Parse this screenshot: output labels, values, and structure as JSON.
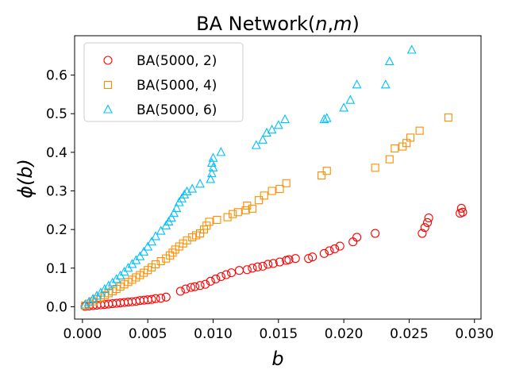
{
  "chart_data": {
    "type": "scatter",
    "title": "BA Network(n,m)",
    "title_parts": {
      "prefix": "BA Network(",
      "n": "n",
      "sep": ",",
      "m": "m",
      "suffix": ")"
    },
    "xlabel": "b",
    "ylabel": "ϕ(b)",
    "xlim": [
      -0.0006,
      0.0305
    ],
    "ylim": [
      -0.032,
      0.702
    ],
    "xticks": [
      0.0,
      0.005,
      0.01,
      0.015,
      0.02,
      0.025,
      0.03
    ],
    "xtick_labels": [
      "0.000",
      "0.005",
      "0.010",
      "0.015",
      "0.020",
      "0.025",
      "0.030"
    ],
    "yticks": [
      0.0,
      0.1,
      0.2,
      0.3,
      0.4,
      0.5,
      0.6
    ],
    "ytick_labels": [
      "0.0",
      "0.1",
      "0.2",
      "0.3",
      "0.4",
      "0.5",
      "0.6"
    ],
    "grid": false,
    "legend_position": "top-left",
    "series": [
      {
        "name": "BA(5000, 2)",
        "marker": "circle",
        "color": "#ff0000",
        "points": [
          [
            0.0002,
            0.001
          ],
          [
            0.0005,
            0.002
          ],
          [
            0.0008,
            0.003
          ],
          [
            0.0011,
            0.004
          ],
          [
            0.0014,
            0.005
          ],
          [
            0.0017,
            0.006
          ],
          [
            0.002,
            0.007
          ],
          [
            0.0023,
            0.008
          ],
          [
            0.0026,
            0.009
          ],
          [
            0.0029,
            0.01
          ],
          [
            0.0032,
            0.011
          ],
          [
            0.0035,
            0.012
          ],
          [
            0.0038,
            0.013
          ],
          [
            0.0041,
            0.014
          ],
          [
            0.0044,
            0.016
          ],
          [
            0.0047,
            0.017
          ],
          [
            0.005,
            0.018
          ],
          [
            0.0053,
            0.019
          ],
          [
            0.0056,
            0.021
          ],
          [
            0.006,
            0.022
          ],
          [
            0.0064,
            0.025
          ],
          [
            0.0075,
            0.04
          ],
          [
            0.0079,
            0.046
          ],
          [
            0.0083,
            0.05
          ],
          [
            0.0086,
            0.052
          ],
          [
            0.009,
            0.055
          ],
          [
            0.0094,
            0.058
          ],
          [
            0.0098,
            0.066
          ],
          [
            0.0102,
            0.072
          ],
          [
            0.0106,
            0.078
          ],
          [
            0.011,
            0.083
          ],
          [
            0.0114,
            0.088
          ],
          [
            0.012,
            0.094
          ],
          [
            0.0126,
            0.096
          ],
          [
            0.013,
            0.1
          ],
          [
            0.0134,
            0.103
          ],
          [
            0.0138,
            0.105
          ],
          [
            0.0142,
            0.11
          ],
          [
            0.0146,
            0.112
          ],
          [
            0.0151,
            0.116
          ],
          [
            0.0156,
            0.12
          ],
          [
            0.0158,
            0.122
          ],
          [
            0.0163,
            0.125
          ],
          [
            0.0173,
            0.125
          ],
          [
            0.0176,
            0.129
          ],
          [
            0.0185,
            0.138
          ],
          [
            0.0189,
            0.145
          ],
          [
            0.0193,
            0.15
          ],
          [
            0.0197,
            0.157
          ],
          [
            0.0207,
            0.168
          ],
          [
            0.021,
            0.18
          ],
          [
            0.0224,
            0.19
          ],
          [
            0.026,
            0.19
          ],
          [
            0.0262,
            0.205
          ],
          [
            0.0264,
            0.218
          ],
          [
            0.0265,
            0.23
          ],
          [
            0.0289,
            0.242
          ],
          [
            0.029,
            0.255
          ],
          [
            0.0291,
            0.245
          ]
        ]
      },
      {
        "name": "BA(5000, 4)",
        "marker": "square",
        "color": "#ff8c00",
        "points": [
          [
            0.0002,
            0.003
          ],
          [
            0.0005,
            0.008
          ],
          [
            0.0008,
            0.014
          ],
          [
            0.0011,
            0.019
          ],
          [
            0.0014,
            0.024
          ],
          [
            0.0017,
            0.03
          ],
          [
            0.002,
            0.035
          ],
          [
            0.0023,
            0.04
          ],
          [
            0.0026,
            0.046
          ],
          [
            0.0029,
            0.052
          ],
          [
            0.0032,
            0.058
          ],
          [
            0.0035,
            0.064
          ],
          [
            0.0038,
            0.07
          ],
          [
            0.0041,
            0.076
          ],
          [
            0.0044,
            0.082
          ],
          [
            0.0047,
            0.088
          ],
          [
            0.005,
            0.095
          ],
          [
            0.0053,
            0.102
          ],
          [
            0.0056,
            0.11
          ],
          [
            0.006,
            0.118
          ],
          [
            0.0064,
            0.125
          ],
          [
            0.0067,
            0.133
          ],
          [
            0.0069,
            0.14
          ],
          [
            0.0071,
            0.148
          ],
          [
            0.0074,
            0.156
          ],
          [
            0.0077,
            0.164
          ],
          [
            0.008,
            0.172
          ],
          [
            0.0084,
            0.18
          ],
          [
            0.0087,
            0.185
          ],
          [
            0.009,
            0.19
          ],
          [
            0.0093,
            0.2
          ],
          [
            0.0095,
            0.21
          ],
          [
            0.0097,
            0.22
          ],
          [
            0.0103,
            0.225
          ],
          [
            0.0111,
            0.232
          ],
          [
            0.0115,
            0.24
          ],
          [
            0.0119,
            0.245
          ],
          [
            0.0125,
            0.25
          ],
          [
            0.0126,
            0.262
          ],
          [
            0.013,
            0.254
          ],
          [
            0.0135,
            0.276
          ],
          [
            0.0139,
            0.288
          ],
          [
            0.0145,
            0.3
          ],
          [
            0.0151,
            0.305
          ],
          [
            0.0156,
            0.32
          ],
          [
            0.0183,
            0.34
          ],
          [
            0.0187,
            0.352
          ],
          [
            0.0224,
            0.36
          ],
          [
            0.0235,
            0.382
          ],
          [
            0.0239,
            0.41
          ],
          [
            0.0245,
            0.415
          ],
          [
            0.0248,
            0.424
          ],
          [
            0.0251,
            0.438
          ],
          [
            0.0258,
            0.456
          ],
          [
            0.028,
            0.49
          ]
        ]
      },
      {
        "name": "BA(5000, 6)",
        "marker": "triangle",
        "color": "#00bfff",
        "points": [
          [
            0.0002,
            0.005
          ],
          [
            0.0005,
            0.012
          ],
          [
            0.0008,
            0.02
          ],
          [
            0.0011,
            0.028
          ],
          [
            0.0014,
            0.036
          ],
          [
            0.0017,
            0.045
          ],
          [
            0.002,
            0.054
          ],
          [
            0.0023,
            0.062
          ],
          [
            0.0026,
            0.071
          ],
          [
            0.0029,
            0.08
          ],
          [
            0.0032,
            0.09
          ],
          [
            0.0035,
            0.1
          ],
          [
            0.0038,
            0.11
          ],
          [
            0.0041,
            0.12
          ],
          [
            0.0044,
            0.13
          ],
          [
            0.0047,
            0.142
          ],
          [
            0.005,
            0.155
          ],
          [
            0.0053,
            0.168
          ],
          [
            0.0056,
            0.182
          ],
          [
            0.006,
            0.196
          ],
          [
            0.0064,
            0.21
          ],
          [
            0.0066,
            0.22
          ],
          [
            0.0068,
            0.23
          ],
          [
            0.007,
            0.242
          ],
          [
            0.0072,
            0.255
          ],
          [
            0.0074,
            0.27
          ],
          [
            0.0076,
            0.28
          ],
          [
            0.0078,
            0.29
          ],
          [
            0.008,
            0.298
          ],
          [
            0.0084,
            0.305
          ],
          [
            0.009,
            0.318
          ],
          [
            0.0098,
            0.33
          ],
          [
            0.0099,
            0.345
          ],
          [
            0.01,
            0.36
          ],
          [
            0.0099,
            0.372
          ],
          [
            0.01,
            0.385
          ],
          [
            0.0106,
            0.4
          ],
          [
            0.0133,
            0.418
          ],
          [
            0.0138,
            0.432
          ],
          [
            0.0141,
            0.45
          ],
          [
            0.0145,
            0.458
          ],
          [
            0.015,
            0.47
          ],
          [
            0.0155,
            0.485
          ],
          [
            0.0185,
            0.485
          ],
          [
            0.0187,
            0.488
          ],
          [
            0.02,
            0.515
          ],
          [
            0.0205,
            0.535
          ],
          [
            0.021,
            0.575
          ],
          [
            0.0232,
            0.575
          ],
          [
            0.0235,
            0.635
          ],
          [
            0.0252,
            0.665
          ]
        ]
      }
    ]
  }
}
